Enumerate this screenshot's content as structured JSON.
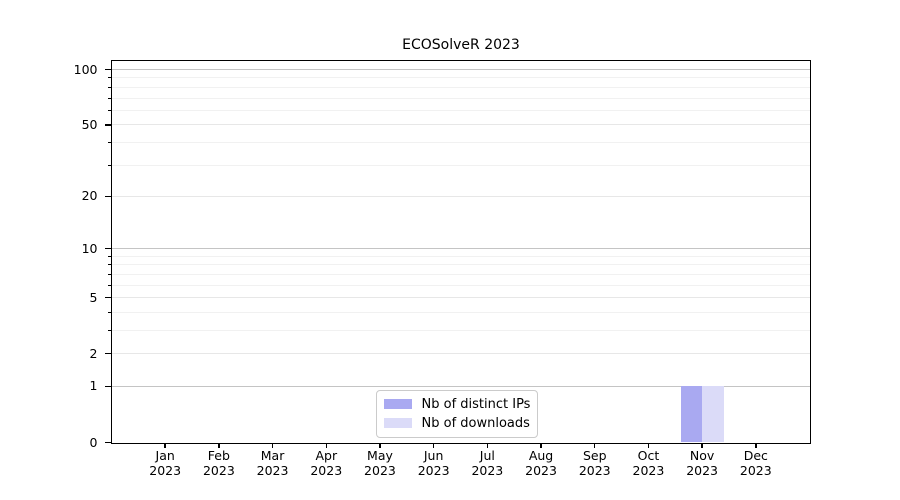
{
  "chart_data": {
    "type": "bar",
    "title": "ECOSolveR 2023",
    "xlabel": "",
    "ylabel": "",
    "x_year_label": "2023",
    "categories": [
      "Jan",
      "Feb",
      "Mar",
      "Apr",
      "May",
      "Jun",
      "Jul",
      "Aug",
      "Sep",
      "Oct",
      "Nov",
      "Dec"
    ],
    "series": [
      {
        "name": "Nb of distinct IPs",
        "color": "#a9a9f1",
        "values": [
          0,
          0,
          0,
          0,
          0,
          0,
          0,
          0,
          0,
          0,
          1,
          0
        ]
      },
      {
        "name": "Nb of downloads",
        "color": "#dbdbf8",
        "values": [
          0,
          0,
          0,
          0,
          0,
          0,
          0,
          0,
          0,
          0,
          1,
          0
        ]
      }
    ],
    "yscale": "log1p",
    "ylim": [
      0,
      112
    ],
    "yticks": [
      0,
      1,
      2,
      5,
      10,
      20,
      50,
      100
    ],
    "yticks_emphasized": [
      1,
      10,
      100
    ],
    "yticks_minor": [
      3,
      4,
      6,
      7,
      8,
      9,
      30,
      40,
      60,
      70,
      80,
      90
    ],
    "grid": "horizontal",
    "legend_position": "bottom-center"
  }
}
